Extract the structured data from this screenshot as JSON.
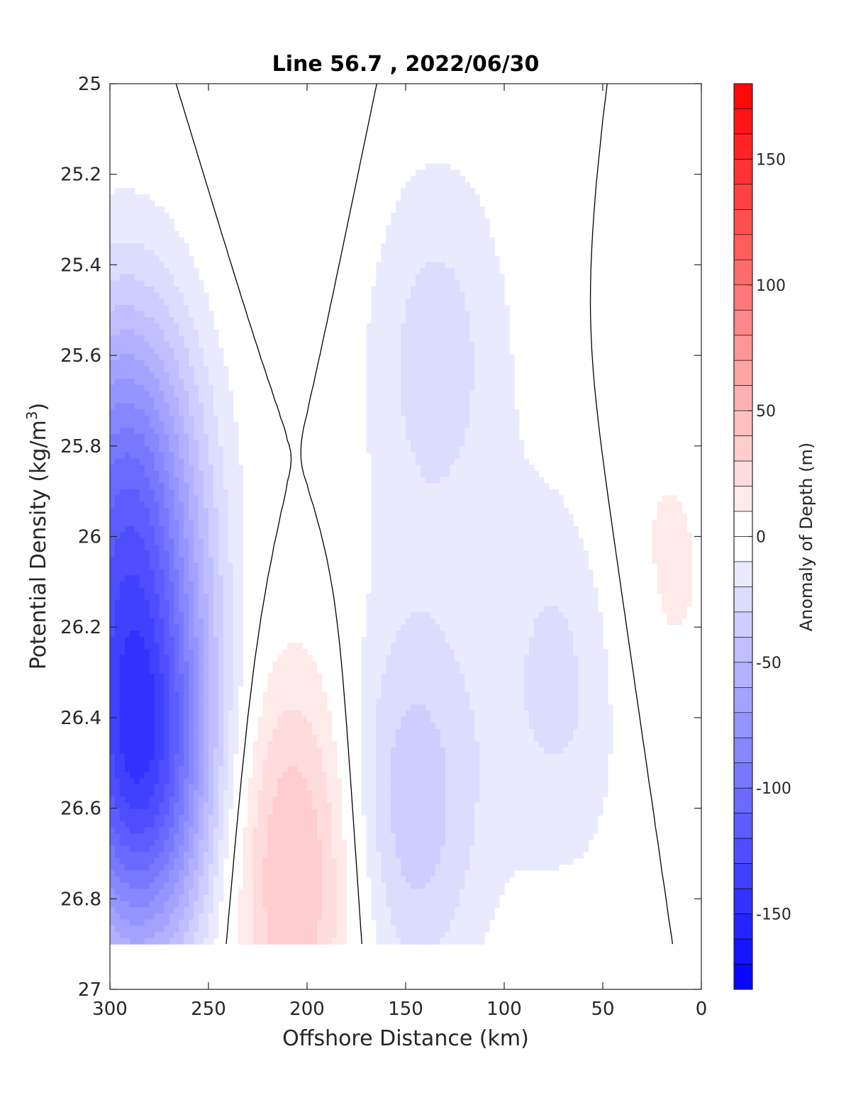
{
  "chart_data": {
    "type": "heatmap",
    "title": "Line 56.7 , 2022/06/30",
    "xlabel": "Offshore Distance (km)",
    "ylabel_main": "Potential Density (kg/m",
    "ylabel_sup": "3",
    "ylabel_close": ")",
    "colorbar_label": "Anomaly of Depth (m)",
    "xlim": [
      300,
      0
    ],
    "ylim": [
      27,
      25
    ],
    "x_reversed": true,
    "y_reversed": true,
    "xticks": [
      300,
      250,
      200,
      150,
      100,
      50,
      0
    ],
    "xtick_labels": [
      "300",
      "250",
      "200",
      "150",
      "100",
      "50",
      "0"
    ],
    "yticks": [
      25,
      25.2,
      25.4,
      25.6,
      25.8,
      26,
      26.2,
      26.4,
      26.6,
      26.8,
      27
    ],
    "ytick_labels": [
      "25",
      "25.2",
      "25.4",
      "25.6",
      "25.8",
      "26",
      "26.2",
      "26.4",
      "26.6",
      "26.8",
      "27"
    ],
    "colorbar": {
      "min": -180,
      "max": 180,
      "step": 10,
      "ticks": [
        150,
        100,
        50,
        0,
        -50,
        -100,
        -150
      ],
      "tick_labels": [
        "150",
        "100",
        "50",
        "0",
        "-50",
        "-100",
        "-150"
      ],
      "colormap": "blue-white-red",
      "negative_color": "#0000ff",
      "positive_color": "#ff0000",
      "zero_color": "#ffffff"
    },
    "contour_levels": [
      0
    ],
    "data_bottom_density": 26.9,
    "grid": false,
    "anomaly_features": [
      {
        "x": 285,
        "y": 26.5,
        "value": -130
      },
      {
        "x": 292,
        "y": 25.9,
        "value": -90
      },
      {
        "x": 205,
        "y": 26.72,
        "value": 45
      },
      {
        "x": 210,
        "y": 25.1,
        "value": 10
      },
      {
        "x": 150,
        "y": 26.6,
        "value": -40
      },
      {
        "x": 135,
        "y": 25.6,
        "value": -25
      },
      {
        "x": 25,
        "y": 26.1,
        "value": 15
      },
      {
        "x": 68,
        "y": 26.3,
        "value": -25
      }
    ]
  }
}
